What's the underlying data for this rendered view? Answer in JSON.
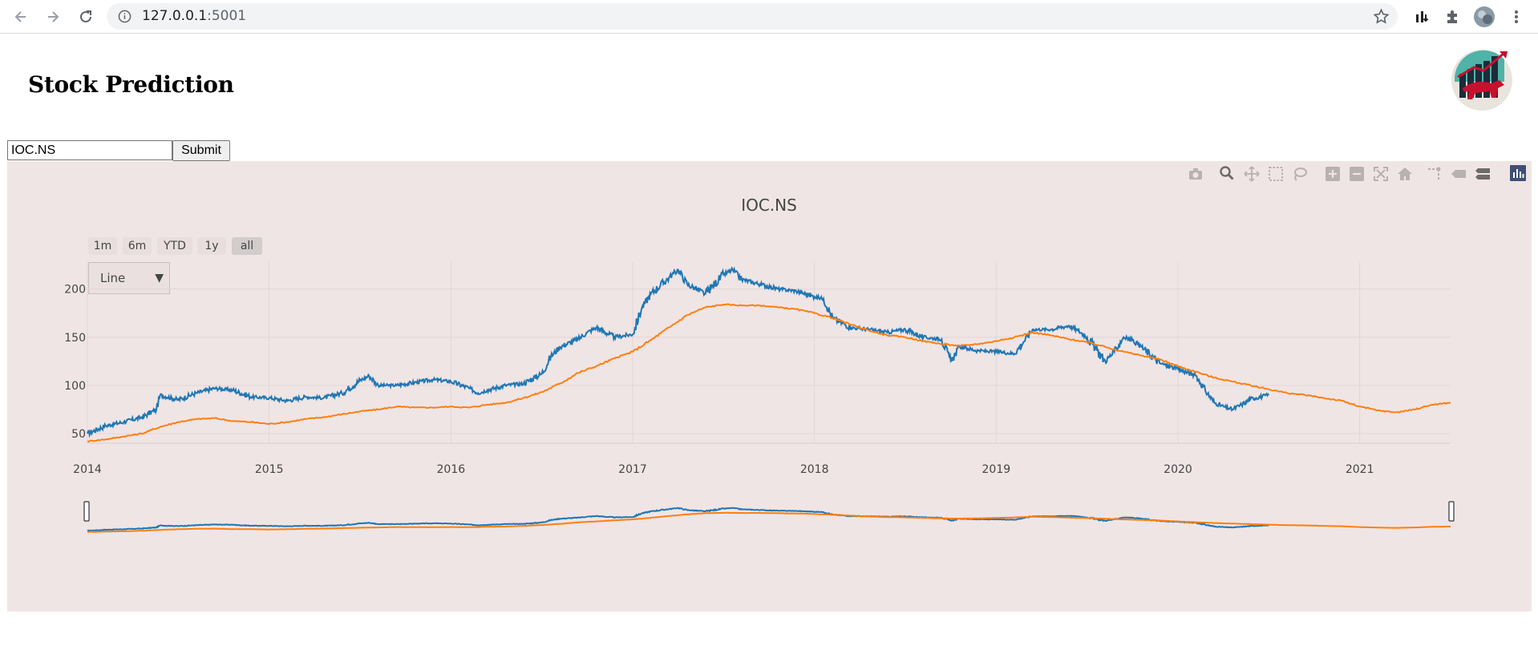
{
  "browser": {
    "url_host": "127.0.0.1",
    "url_port": ":5001"
  },
  "app": {
    "title": "Stock Prediction",
    "input_value": "IOC.NS",
    "submit_label": "Submit"
  },
  "plot_controls": {
    "range_buttons": [
      "1m",
      "6m",
      "YTD",
      "1y",
      "all"
    ],
    "active_range": "all",
    "dropdown_value": "Line",
    "modebar_icons": [
      "camera-icon",
      "zoom-icon",
      "pan-icon",
      "box-select-icon",
      "lasso-icon",
      "zoom-in-icon",
      "zoom-out-icon",
      "autoscale-icon",
      "reset-axes-icon",
      "spike-lines-icon",
      "hover-closest-icon",
      "hover-compare-icon",
      "plotly-logo-icon"
    ]
  },
  "chart_data": {
    "type": "line",
    "title": "IOC.NS",
    "xlabel": "",
    "ylabel": "",
    "x_ticks": [
      "2014",
      "2015",
      "2016",
      "2017",
      "2018",
      "2019",
      "2020",
      "2021"
    ],
    "y_ticks": [
      50,
      100,
      150,
      200
    ],
    "xlim": [
      2014.0,
      2021.5
    ],
    "ylim": [
      40,
      228
    ],
    "grid": true,
    "legend": "none",
    "range_slider": true,
    "series": [
      {
        "color": "#1f77b4",
        "x": [
          2014.0,
          2014.1,
          2014.2,
          2014.3,
          2014.38,
          2014.4,
          2014.5,
          2014.6,
          2014.7,
          2014.8,
          2014.9,
          2015.0,
          2015.1,
          2015.2,
          2015.3,
          2015.4,
          2015.5,
          2015.55,
          2015.6,
          2015.7,
          2015.8,
          2015.9,
          2016.0,
          2016.1,
          2016.15,
          2016.2,
          2016.3,
          2016.4,
          2016.5,
          2016.55,
          2016.6,
          2016.7,
          2016.75,
          2016.8,
          2016.9,
          2017.0,
          2017.05,
          2017.1,
          2017.2,
          2017.25,
          2017.3,
          2017.4,
          2017.5,
          2017.55,
          2017.6,
          2017.7,
          2017.8,
          2017.9,
          2018.0,
          2018.05,
          2018.1,
          2018.2,
          2018.3,
          2018.4,
          2018.5,
          2018.6,
          2018.7,
          2018.75,
          2018.8,
          2018.9,
          2019.0,
          2019.1,
          2019.15,
          2019.2,
          2019.3,
          2019.4,
          2019.45,
          2019.5,
          2019.6,
          2019.65,
          2019.7,
          2019.75,
          2019.8,
          2019.9,
          2020.0,
          2020.1,
          2020.15,
          2020.2,
          2020.25,
          2020.3,
          2020.35,
          2020.4,
          2020.5
        ],
        "values": [
          50,
          58,
          62,
          67,
          75,
          90,
          85,
          92,
          97,
          95,
          88,
          87,
          84,
          88,
          87,
          92,
          105,
          110,
          100,
          100,
          103,
          106,
          104,
          97,
          92,
          95,
          100,
          102,
          112,
          130,
          140,
          148,
          155,
          160,
          150,
          153,
          180,
          195,
          212,
          220,
          205,
          195,
          215,
          220,
          210,
          205,
          200,
          198,
          192,
          190,
          170,
          160,
          158,
          155,
          158,
          150,
          148,
          125,
          140,
          136,
          135,
          133,
          145,
          158,
          158,
          162,
          157,
          150,
          125,
          135,
          150,
          147,
          140,
          123,
          117,
          110,
          95,
          82,
          78,
          75,
          80,
          86,
          90
        ]
      },
      {
        "color": "#ff7f0e",
        "x": [
          2014.0,
          2014.1,
          2014.2,
          2014.3,
          2014.4,
          2014.5,
          2014.6,
          2014.7,
          2014.8,
          2014.9,
          2015.0,
          2015.1,
          2015.2,
          2015.3,
          2015.4,
          2015.5,
          2015.6,
          2015.7,
          2015.8,
          2015.9,
          2016.0,
          2016.1,
          2016.2,
          2016.3,
          2016.4,
          2016.5,
          2016.6,
          2016.7,
          2016.8,
          2016.9,
          2017.0,
          2017.1,
          2017.2,
          2017.3,
          2017.4,
          2017.5,
          2017.6,
          2017.7,
          2017.8,
          2017.9,
          2018.0,
          2018.1,
          2018.2,
          2018.3,
          2018.4,
          2018.5,
          2018.6,
          2018.7,
          2018.8,
          2018.9,
          2019.0,
          2019.1,
          2019.2,
          2019.3,
          2019.4,
          2019.5,
          2019.6,
          2019.7,
          2019.8,
          2019.9,
          2020.0,
          2020.1,
          2020.2,
          2020.3,
          2020.4,
          2020.5,
          2020.6,
          2020.7,
          2020.8,
          2020.9,
          2021.0,
          2021.1,
          2021.2,
          2021.3,
          2021.4,
          2021.5
        ],
        "values": [
          42,
          44,
          47,
          50,
          57,
          62,
          65,
          66,
          63,
          62,
          60,
          62,
          65,
          67,
          70,
          73,
          75,
          78,
          77,
          77,
          78,
          77,
          80,
          82,
          87,
          93,
          102,
          113,
          120,
          128,
          135,
          147,
          160,
          173,
          181,
          184,
          183,
          183,
          181,
          179,
          175,
          170,
          163,
          157,
          152,
          150,
          146,
          143,
          141,
          143,
          146,
          150,
          155,
          152,
          148,
          145,
          140,
          135,
          131,
          127,
          120,
          114,
          108,
          104,
          100,
          96,
          92,
          90,
          87,
          84,
          78,
          74,
          72,
          75,
          80,
          82
        ]
      }
    ]
  }
}
